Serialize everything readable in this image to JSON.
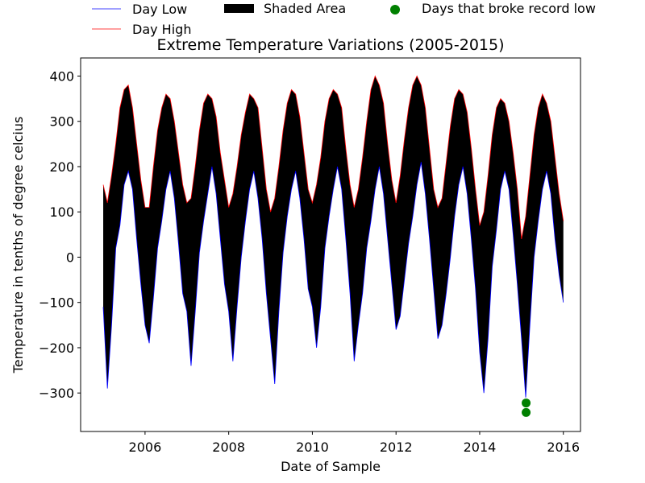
{
  "chart_data": {
    "type": "line",
    "title": "Extreme Temperature Variations (2005-2015)",
    "xlabel": "Date of Sample",
    "ylabel": "Temperature in tenths of degree celcius",
    "xlim": [
      2004.46,
      2016.41
    ],
    "ylim": [
      -385,
      440
    ],
    "x_ticks": [
      2006,
      2008,
      2010,
      2012,
      2014,
      2016
    ],
    "x_tick_labels": [
      "2006",
      "2008",
      "2010",
      "2012",
      "2014",
      "2016"
    ],
    "y_ticks": [
      -300,
      -200,
      -100,
      0,
      100,
      200,
      300,
      400
    ],
    "y_tick_labels": [
      "−300",
      "−200",
      "−100",
      "0",
      "100",
      "200",
      "300",
      "400"
    ],
    "legend": {
      "placement": "top (above plot, outside)",
      "entries": [
        {
          "label": "Day Low",
          "color": "#0000ff",
          "marker": "line"
        },
        {
          "label": "Day High",
          "color": "#ff0000",
          "marker": "line"
        },
        {
          "label": "Shaded Area",
          "color": "#000000",
          "marker": "patch"
        },
        {
          "label": "Days that broke record low",
          "color": "#008000",
          "marker": "circle"
        }
      ]
    },
    "series": [
      {
        "name": "Day Low",
        "color": "#0000ff",
        "x": [
          2005.0,
          2005.1,
          2005.2,
          2005.3,
          2005.4,
          2005.5,
          2005.6,
          2005.7,
          2005.8,
          2005.9,
          2006.0,
          2006.1,
          2006.2,
          2006.3,
          2006.4,
          2006.5,
          2006.6,
          2006.7,
          2006.8,
          2006.9,
          2007.0,
          2007.1,
          2007.2,
          2007.3,
          2007.4,
          2007.5,
          2007.6,
          2007.7,
          2007.8,
          2007.9,
          2008.0,
          2008.1,
          2008.2,
          2008.3,
          2008.4,
          2008.5,
          2008.6,
          2008.7,
          2008.8,
          2008.9,
          2009.0,
          2009.1,
          2009.2,
          2009.3,
          2009.4,
          2009.5,
          2009.6,
          2009.7,
          2009.8,
          2009.9,
          2010.0,
          2010.1,
          2010.2,
          2010.3,
          2010.4,
          2010.5,
          2010.6,
          2010.7,
          2010.8,
          2010.9,
          2011.0,
          2011.1,
          2011.2,
          2011.3,
          2011.4,
          2011.5,
          2011.6,
          2011.7,
          2011.8,
          2011.9,
          2012.0,
          2012.1,
          2012.2,
          2012.3,
          2012.4,
          2012.5,
          2012.6,
          2012.7,
          2012.8,
          2012.9,
          2013.0,
          2013.1,
          2013.2,
          2013.3,
          2013.4,
          2013.5,
          2013.6,
          2013.7,
          2013.8,
          2013.9,
          2014.0,
          2014.1,
          2014.2,
          2014.3,
          2014.4,
          2014.5,
          2014.6,
          2014.7,
          2014.8,
          2014.9,
          2015.0,
          2015.1,
          2015.2,
          2015.3,
          2015.4,
          2015.5,
          2015.6,
          2015.7,
          2015.8,
          2015.9,
          2016.0
        ],
        "y": [
          -110,
          -290,
          -150,
          20,
          70,
          160,
          190,
          150,
          40,
          -60,
          -150,
          -190,
          -90,
          20,
          80,
          150,
          190,
          130,
          30,
          -80,
          -120,
          -240,
          -120,
          10,
          80,
          140,
          200,
          140,
          40,
          -60,
          -120,
          -230,
          -110,
          0,
          80,
          150,
          190,
          130,
          40,
          -80,
          -180,
          -280,
          -120,
          10,
          90,
          150,
          190,
          130,
          40,
          -70,
          -110,
          -200,
          -110,
          20,
          90,
          150,
          200,
          150,
          40,
          -80,
          -230,
          -150,
          -80,
          20,
          80,
          150,
          200,
          140,
          40,
          -60,
          -160,
          -130,
          -50,
          30,
          90,
          160,
          210,
          140,
          40,
          -70,
          -180,
          -150,
          -80,
          0,
          90,
          160,
          200,
          140,
          40,
          -70,
          -210,
          -300,
          -180,
          -20,
          60,
          150,
          190,
          150,
          50,
          -60,
          -180,
          -310,
          -150,
          0,
          80,
          150,
          190,
          140,
          40,
          -40,
          -100
        ]
      },
      {
        "name": "Day High",
        "color": "#ff0000",
        "x": [
          2005.0,
          2005.1,
          2005.2,
          2005.3,
          2005.4,
          2005.5,
          2005.6,
          2005.7,
          2005.8,
          2005.9,
          2006.0,
          2006.1,
          2006.2,
          2006.3,
          2006.4,
          2006.5,
          2006.6,
          2006.7,
          2006.8,
          2006.9,
          2007.0,
          2007.1,
          2007.2,
          2007.3,
          2007.4,
          2007.5,
          2007.6,
          2007.7,
          2007.8,
          2007.9,
          2008.0,
          2008.1,
          2008.2,
          2008.3,
          2008.4,
          2008.5,
          2008.6,
          2008.7,
          2008.8,
          2008.9,
          2009.0,
          2009.1,
          2009.2,
          2009.3,
          2009.4,
          2009.5,
          2009.6,
          2009.7,
          2009.8,
          2009.9,
          2010.0,
          2010.1,
          2010.2,
          2010.3,
          2010.4,
          2010.5,
          2010.6,
          2010.7,
          2010.8,
          2010.9,
          2011.0,
          2011.1,
          2011.2,
          2011.3,
          2011.4,
          2011.5,
          2011.6,
          2011.7,
          2011.8,
          2011.9,
          2012.0,
          2012.1,
          2012.2,
          2012.3,
          2012.4,
          2012.5,
          2012.6,
          2012.7,
          2012.8,
          2012.9,
          2013.0,
          2013.1,
          2013.2,
          2013.3,
          2013.4,
          2013.5,
          2013.6,
          2013.7,
          2013.8,
          2013.9,
          2014.0,
          2014.1,
          2014.2,
          2014.3,
          2014.4,
          2014.5,
          2014.6,
          2014.7,
          2014.8,
          2014.9,
          2015.0,
          2015.1,
          2015.2,
          2015.3,
          2015.4,
          2015.5,
          2015.6,
          2015.7,
          2015.8,
          2015.9,
          2016.0
        ],
        "y": [
          160,
          120,
          180,
          250,
          330,
          370,
          380,
          330,
          250,
          170,
          110,
          110,
          200,
          280,
          330,
          360,
          350,
          300,
          230,
          160,
          120,
          130,
          200,
          280,
          340,
          360,
          350,
          310,
          230,
          170,
          110,
          140,
          200,
          270,
          320,
          360,
          350,
          330,
          240,
          150,
          100,
          130,
          200,
          280,
          340,
          370,
          360,
          310,
          230,
          150,
          120,
          160,
          220,
          300,
          350,
          370,
          360,
          330,
          240,
          160,
          110,
          150,
          220,
          300,
          370,
          400,
          380,
          340,
          250,
          170,
          120,
          180,
          260,
          330,
          380,
          400,
          380,
          330,
          240,
          150,
          110,
          130,
          210,
          290,
          350,
          370,
          360,
          320,
          240,
          150,
          70,
          100,
          180,
          270,
          330,
          350,
          340,
          300,
          230,
          150,
          40,
          90,
          180,
          270,
          330,
          360,
          340,
          300,
          220,
          140,
          80
        ]
      },
      {
        "name": "Days that broke record low",
        "color": "#008000",
        "type": "scatter",
        "x": [
          2015.11,
          2015.11
        ],
        "y": [
          -322,
          -343
        ]
      }
    ]
  }
}
